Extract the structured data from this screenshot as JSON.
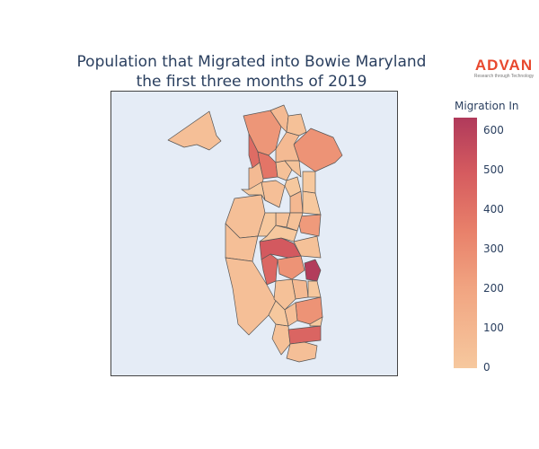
{
  "title_line1": "Population that Migrated into Bowie Maryland",
  "title_line2": "the first three months of 2019",
  "logo": {
    "brand": "ADVAN",
    "tagline": "Research through Technology"
  },
  "colorbar": {
    "title": "Migration In",
    "ticks": [
      "600",
      "500",
      "400",
      "300",
      "200",
      "100",
      "0"
    ],
    "range": [
      0,
      630
    ],
    "colors": [
      "#f6c89e",
      "#f1a481",
      "#e8806a",
      "#d55b5f",
      "#b03a5b"
    ]
  },
  "colors": {
    "background": "#e5ecf6",
    "border": "#444444"
  },
  "chart_data": {
    "type": "choropleth",
    "title": "Population that Migrated into Bowie Maryland the first three months of 2019",
    "colorbar_title": "Migration In",
    "range": [
      0,
      630
    ],
    "regions": [
      {
        "id": "r1",
        "value": 40
      },
      {
        "id": "r2",
        "value": 220
      },
      {
        "id": "r3",
        "value": 60
      },
      {
        "id": "r4",
        "value": 230
      },
      {
        "id": "r5",
        "value": 400
      },
      {
        "id": "r6",
        "value": 360
      },
      {
        "id": "r7",
        "value": 60
      },
      {
        "id": "r8",
        "value": 30
      },
      {
        "id": "r9",
        "value": 20
      },
      {
        "id": "r10",
        "value": 30
      },
      {
        "id": "r11",
        "value": 60
      },
      {
        "id": "r12",
        "value": 40
      },
      {
        "id": "r13",
        "value": 200
      },
      {
        "id": "r14",
        "value": 70
      },
      {
        "id": "r15",
        "value": 30
      },
      {
        "id": "r16",
        "value": 30
      },
      {
        "id": "r17",
        "value": 40
      },
      {
        "id": "r18",
        "value": 480
      },
      {
        "id": "r19",
        "value": 30
      },
      {
        "id": "r20",
        "value": 420
      },
      {
        "id": "r21",
        "value": 230
      },
      {
        "id": "r22",
        "value": 620
      },
      {
        "id": "r23",
        "value": 60
      },
      {
        "id": "r24",
        "value": 40
      },
      {
        "id": "r25",
        "value": 40
      },
      {
        "id": "r26",
        "value": 30
      },
      {
        "id": "r27",
        "value": 230
      },
      {
        "id": "r28",
        "value": 40
      },
      {
        "id": "r29",
        "value": 30
      },
      {
        "id": "r30",
        "value": 430
      },
      {
        "id": "r31",
        "value": 40
      }
    ]
  }
}
